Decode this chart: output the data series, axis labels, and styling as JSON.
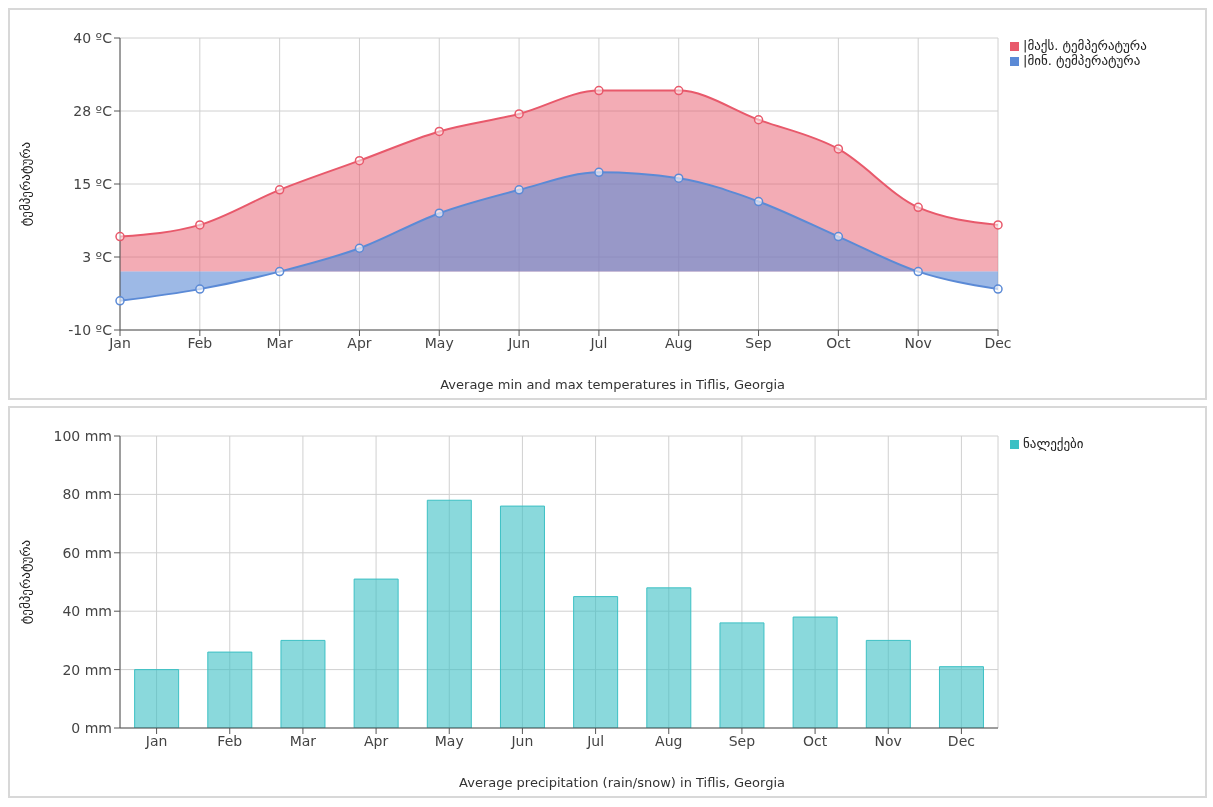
{
  "chart_data": [
    {
      "type": "area",
      "ylabel": "ტემპერატურა",
      "categories": [
        "Jan",
        "Feb",
        "Mar",
        "Apr",
        "May",
        "Jun",
        "Jul",
        "Aug",
        "Sep",
        "Oct",
        "Nov",
        "Dec"
      ],
      "series": [
        {
          "name": "|მაქს. ტემპერატურა",
          "color": "#e8596b",
          "values": [
            6,
            8,
            14,
            19,
            24,
            27,
            31,
            31,
            26,
            21,
            11,
            8
          ]
        },
        {
          "name": "|მინ. ტემპერატურა",
          "color": "#5b8ad6",
          "values": [
            -5,
            -3,
            0,
            4,
            10,
            14,
            17,
            16,
            12,
            6,
            0,
            -3
          ]
        }
      ],
      "ylim": [
        -10,
        40
      ],
      "yticks": [
        {
          "value": -10,
          "label": "-10 ºC"
        },
        {
          "value": 2.5,
          "label": "3 ºC"
        },
        {
          "value": 15,
          "label": "15 ºC"
        },
        {
          "value": 27.5,
          "label": "28 ºC"
        },
        {
          "value": 40,
          "label": "40 ºC"
        }
      ],
      "grid": true,
      "legend": "top right",
      "marker": "circle",
      "annotations": [
        "Average min and max temperatures in Tiflis, Georgia"
      ]
    },
    {
      "type": "bar",
      "ylabel": "ტემპერატურა",
      "categories": [
        "Jan",
        "Feb",
        "Mar",
        "Apr",
        "May",
        "Jun",
        "Jul",
        "Aug",
        "Sep",
        "Oct",
        "Nov",
        "Dec"
      ],
      "series": [
        {
          "name": "ნალექები",
          "color": "#3cc0c4",
          "values": [
            20,
            26,
            30,
            51,
            78,
            76,
            45,
            48,
            36,
            38,
            30,
            21
          ]
        }
      ],
      "ylim": [
        0,
        100
      ],
      "yticks": [
        {
          "value": 0,
          "label": "0 mm"
        },
        {
          "value": 20,
          "label": "20 mm"
        },
        {
          "value": 40,
          "label": "40 mm"
        },
        {
          "value": 60,
          "label": "60 mm"
        },
        {
          "value": 80,
          "label": "80 mm"
        },
        {
          "value": 100,
          "label": "100 mm"
        }
      ],
      "grid": true,
      "legend": "top right",
      "annotations": [
        "Average precipitation (rain/snow) in Tiflis, Georgia"
      ]
    }
  ]
}
